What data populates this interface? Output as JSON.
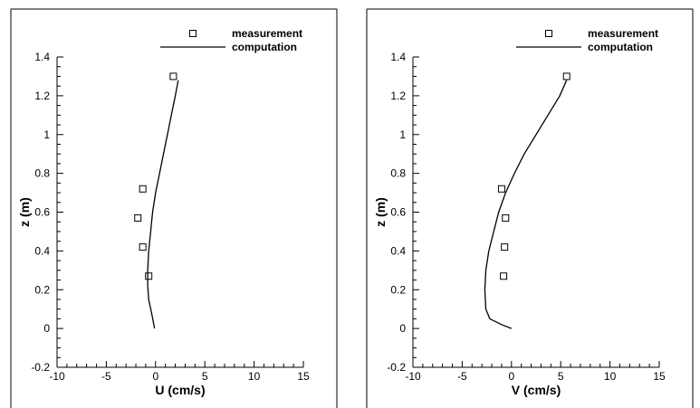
{
  "chart_data": [
    {
      "type": "line",
      "xlabel": "U (cm/s)",
      "ylabel": "z (m)",
      "xlim": [
        -10,
        15
      ],
      "ylim": [
        -0.2,
        1.4
      ],
      "xticks": [
        -10,
        -5,
        0,
        5,
        10,
        15
      ],
      "yticks": [
        -0.2,
        0,
        0.2,
        0.4,
        0.6,
        0.8,
        1,
        1.2,
        1.4
      ],
      "xtick_labels": [
        "-10",
        "-5",
        "0",
        "5",
        "10",
        "15"
      ],
      "ytick_labels": [
        "-0.2",
        "0",
        "0.2",
        "0.4",
        "0.6",
        "0.8",
        "1",
        "1.2",
        "1.4"
      ],
      "legend": {
        "position": "top-right",
        "entries": [
          "measurement",
          "computation"
        ]
      },
      "series": [
        {
          "name": "measurement",
          "style": "markers",
          "marker": "open-square",
          "x": [
            1.8,
            -1.3,
            -1.8,
            -1.3,
            -0.7
          ],
          "y": [
            1.3,
            0.72,
            0.57,
            0.42,
            0.27
          ]
        },
        {
          "name": "computation",
          "style": "line",
          "x": [
            -0.1,
            -0.4,
            -0.7,
            -0.8,
            -0.8,
            -0.7,
            -0.5,
            -0.3,
            0.0,
            0.4,
            0.8,
            1.2,
            1.6,
            2.0,
            2.3
          ],
          "y": [
            0.0,
            0.08,
            0.15,
            0.22,
            0.3,
            0.4,
            0.5,
            0.6,
            0.7,
            0.8,
            0.9,
            1.0,
            1.1,
            1.2,
            1.28
          ]
        }
      ]
    },
    {
      "type": "line",
      "xlabel": "V (cm/s)",
      "ylabel": "z (m)",
      "xlim": [
        -10,
        15
      ],
      "ylim": [
        -0.2,
        1.4
      ],
      "xticks": [
        -10,
        -5,
        0,
        5,
        10,
        15
      ],
      "yticks": [
        -0.2,
        0,
        0.2,
        0.4,
        0.6,
        0.8,
        1,
        1.2,
        1.4
      ],
      "xtick_labels": [
        "-10",
        "-5",
        "0",
        "5",
        "10",
        "15"
      ],
      "ytick_labels": [
        "-0.2",
        "0",
        "0.2",
        "0.4",
        "0.6",
        "0.8",
        "1",
        "1.2",
        "1.4"
      ],
      "legend": {
        "position": "top-right",
        "entries": [
          "measurement",
          "computation"
        ]
      },
      "series": [
        {
          "name": "measurement",
          "style": "markers",
          "marker": "open-square",
          "x": [
            5.6,
            -1.0,
            -0.6,
            -0.7,
            -0.8
          ],
          "y": [
            1.3,
            0.72,
            0.57,
            0.42,
            0.27
          ]
        },
        {
          "name": "computation",
          "style": "line",
          "x": [
            0.0,
            -1.0,
            -2.2,
            -2.6,
            -2.7,
            -2.6,
            -2.3,
            -1.8,
            -1.3,
            -0.6,
            0.3,
            1.3,
            2.5,
            3.7,
            4.9,
            5.6
          ],
          "y": [
            0.0,
            0.02,
            0.05,
            0.1,
            0.2,
            0.3,
            0.4,
            0.5,
            0.6,
            0.7,
            0.8,
            0.9,
            1.0,
            1.1,
            1.2,
            1.28
          ]
        }
      ]
    }
  ]
}
